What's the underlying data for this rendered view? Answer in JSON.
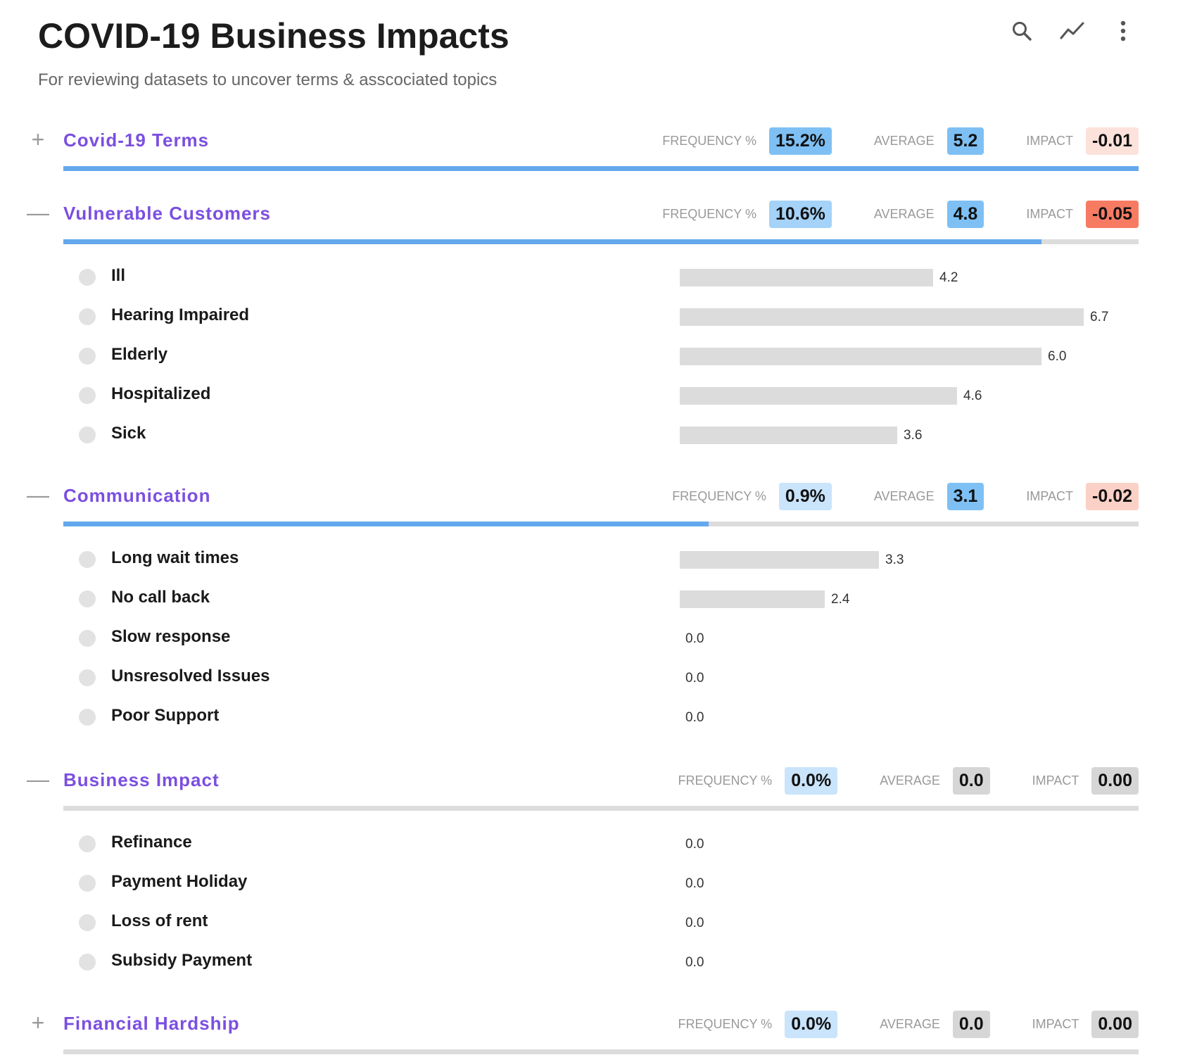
{
  "header": {
    "title": "COVID-19 Business Impacts",
    "subtitle": "For reviewing datasets to uncover terms & asscociated topics"
  },
  "toolbar": {
    "icons": [
      "search-icon",
      "trend-line-icon",
      "more-vert-icon"
    ]
  },
  "labels": {
    "frequency": "FREQUENCY %",
    "average": "AVERAGE",
    "impact": "IMPACT"
  },
  "scale": {
    "max_value": 7.0
  },
  "colors": {
    "title": "#7b4fe0",
    "bar_fill": "#64a8ec",
    "bar_track": "#dcdcdc",
    "item_bar": "#dcdcdc"
  },
  "sections": [
    {
      "title": "Covid-19 Terms",
      "expanded": false,
      "toggle": "+",
      "frequency": "15.2%",
      "average": "5.2",
      "impact": "-0.01",
      "progress": 100,
      "colors": {
        "frequency": "#7ec0f4",
        "average": "#7ec0f4",
        "impact": "#fde2dc"
      },
      "items": []
    },
    {
      "title": "Vulnerable Customers",
      "expanded": true,
      "toggle": "—",
      "frequency": "10.6%",
      "average": "4.8",
      "impact": "-0.05",
      "progress": 91,
      "colors": {
        "frequency": "#a4d2f8",
        "average": "#7ec0f4",
        "impact": "#f77b63"
      },
      "items": [
        {
          "label": "Ill",
          "value": 4.2,
          "display": "4.2"
        },
        {
          "label": "Hearing Impaired",
          "value": 6.7,
          "display": "6.7"
        },
        {
          "label": "Elderly",
          "value": 6.0,
          "display": "6.0"
        },
        {
          "label": "Hospitalized",
          "value": 4.6,
          "display": "4.6"
        },
        {
          "label": "Sick",
          "value": 3.6,
          "display": "3.6"
        }
      ]
    },
    {
      "title": "Communication",
      "expanded": true,
      "toggle": "—",
      "frequency": "0.9%",
      "average": "3.1",
      "impact": "-0.02",
      "progress": 60,
      "colors": {
        "frequency": "#c9e4fb",
        "average": "#7ec0f4",
        "impact": "#fbd0c6"
      },
      "items": [
        {
          "label": "Long wait times",
          "value": 3.3,
          "display": "3.3"
        },
        {
          "label": "No call back",
          "value": 2.4,
          "display": "2.4"
        },
        {
          "label": "Slow response",
          "value": 0.0,
          "display": "0.0"
        },
        {
          "label": "Unsresolved Issues",
          "value": 0.0,
          "display": "0.0"
        },
        {
          "label": "Poor Support",
          "value": 0.0,
          "display": "0.0"
        }
      ]
    },
    {
      "title": "Business Impact",
      "expanded": true,
      "toggle": "—",
      "frequency": "0.0%",
      "average": "0.0",
      "impact": "0.00",
      "progress": 0,
      "colors": {
        "frequency": "#c9e4fb",
        "average": "#d6d6d6",
        "impact": "#d6d6d6"
      },
      "items": [
        {
          "label": "Refinance",
          "value": 0.0,
          "display": "0.0"
        },
        {
          "label": "Payment Holiday",
          "value": 0.0,
          "display": "0.0"
        },
        {
          "label": "Loss of rent",
          "value": 0.0,
          "display": "0.0"
        },
        {
          "label": "Subsidy Payment",
          "value": 0.0,
          "display": "0.0"
        }
      ]
    },
    {
      "title": "Financial Hardship",
      "expanded": false,
      "toggle": "+",
      "frequency": "0.0%",
      "average": "0.0",
      "impact": "0.00",
      "progress": 0,
      "colors": {
        "frequency": "#c9e4fb",
        "average": "#d6d6d6",
        "impact": "#d6d6d6"
      },
      "items": []
    }
  ]
}
